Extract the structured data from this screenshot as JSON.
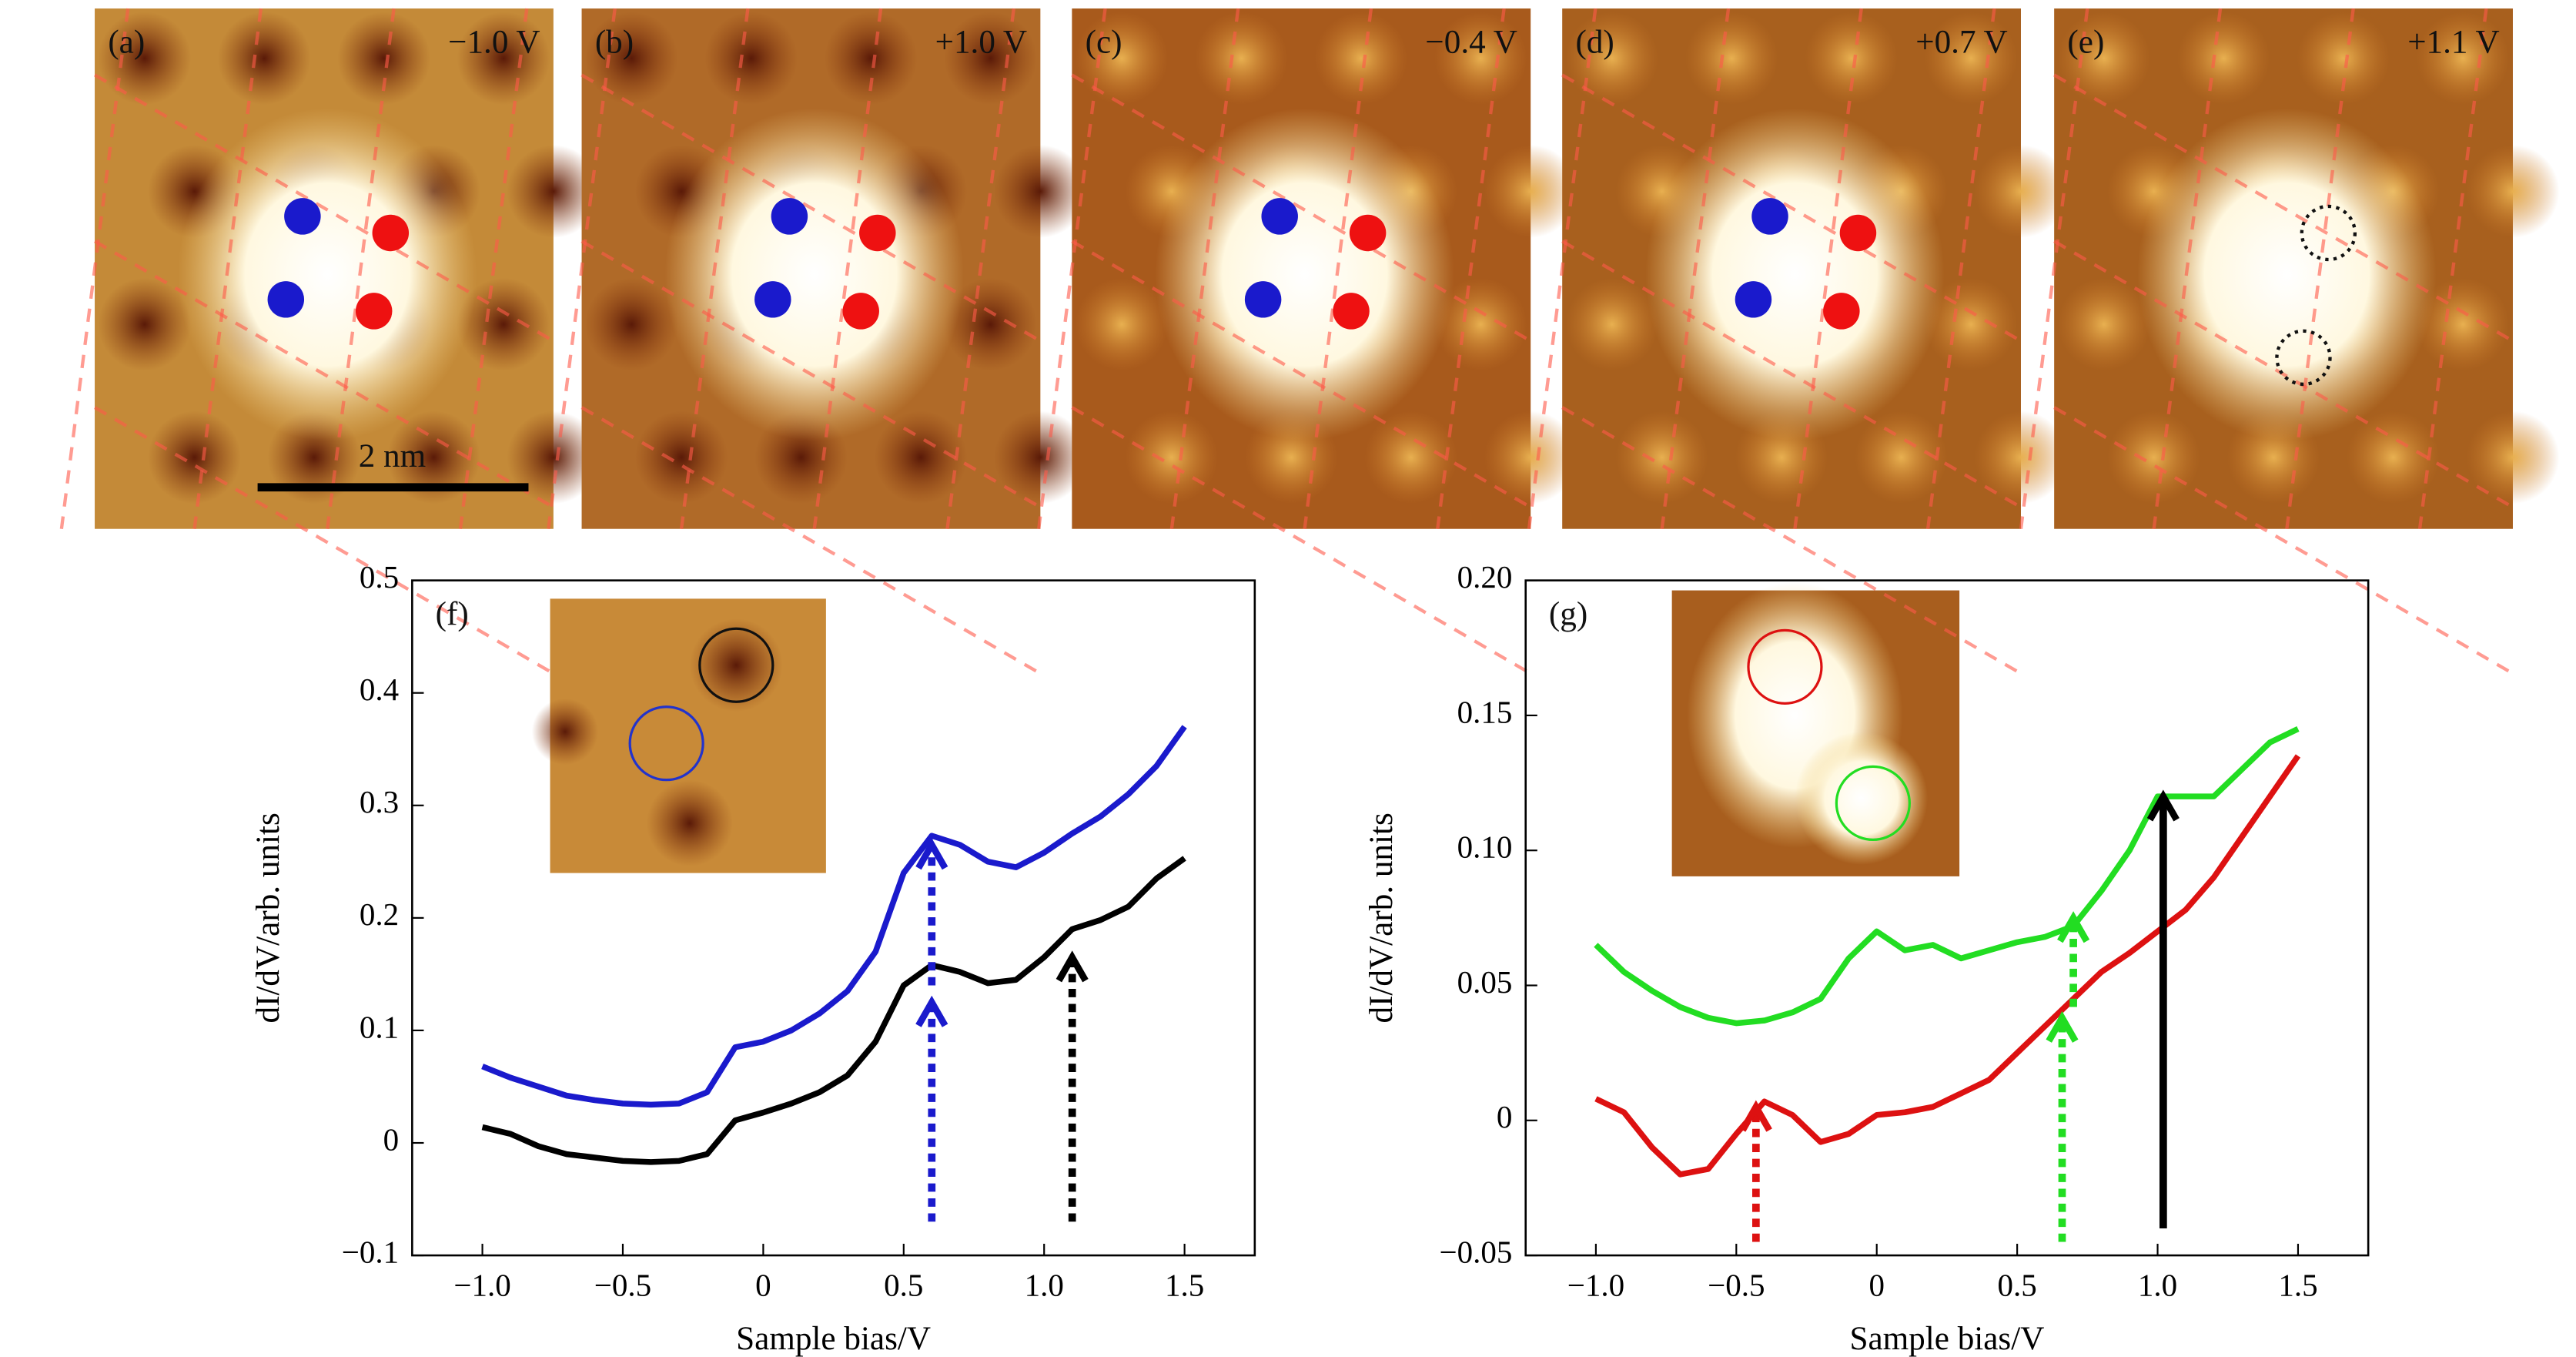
{
  "panels": [
    {
      "label": "(a)",
      "bias": "−1.0 V"
    },
    {
      "label": "(b)",
      "bias": "+1.0 V"
    },
    {
      "label": "(c)",
      "bias": "−0.4 V"
    },
    {
      "label": "(d)",
      "bias": "+0.7 V"
    },
    {
      "label": "(e)",
      "bias": "+1.1 V"
    }
  ],
  "scale_bar": "2 nm",
  "chart_data": [
    {
      "type": "line",
      "panel_label": "(f)",
      "xlabel": "Sample bias/V",
      "ylabel": "dI/dV/arb. units",
      "x": [
        -1.0,
        -0.9,
        -0.8,
        -0.7,
        -0.6,
        -0.5,
        -0.4,
        -0.3,
        -0.2,
        -0.1,
        0,
        0.1,
        0.2,
        0.3,
        0.4,
        0.5,
        0.6,
        0.7,
        0.8,
        0.9,
        1.0,
        1.1,
        1.2,
        1.3,
        1.4,
        1.5
      ],
      "series": [
        {
          "color": "#1a1acc",
          "values": [
            0.068,
            0.058,
            0.05,
            0.042,
            0.038,
            0.035,
            0.034,
            0.035,
            0.045,
            0.085,
            0.09,
            0.1,
            0.115,
            0.135,
            0.17,
            0.24,
            0.273,
            0.265,
            0.25,
            0.245,
            0.258,
            0.275,
            0.29,
            0.31,
            0.335,
            0.37
          ]
        },
        {
          "color": "#000000",
          "values": [
            0.014,
            0.008,
            -0.003,
            -0.01,
            -0.013,
            -0.016,
            -0.017,
            -0.016,
            -0.01,
            0.02,
            0.027,
            0.035,
            0.045,
            0.06,
            0.09,
            0.14,
            0.158,
            0.152,
            0.142,
            0.145,
            0.165,
            0.19,
            0.198,
            0.21,
            0.235,
            0.253
          ]
        }
      ],
      "xlim": [
        -1.25,
        1.75
      ],
      "ylim": [
        -0.1,
        0.5
      ],
      "xticks": [
        {
          "value": -1,
          "label": "−1.0"
        },
        {
          "value": -0.5,
          "label": "−0.5"
        },
        0,
        0.5,
        {
          "value": 1,
          "label": "1.0"
        },
        1.5
      ],
      "yticks": [
        {
          "value": -0.1,
          "label": "−0.1"
        },
        0,
        0.1,
        0.2,
        0.3,
        0.4,
        0.5
      ],
      "arrows": [
        {
          "x": 0.6,
          "from": -0.07,
          "to": 0.125,
          "color": "#1a1acc",
          "dashed": true
        },
        {
          "x": 0.6,
          "from": 0.14,
          "to": 0.265,
          "color": "#1a1acc",
          "dashed": true
        },
        {
          "x": 1.1,
          "from": -0.07,
          "to": 0.165,
          "color": "#000000",
          "dashed": true
        }
      ]
    },
    {
      "type": "line",
      "panel_label": "(g)",
      "xlabel": "Sample bias/V",
      "ylabel": "dI/dV/arb. units",
      "x": [
        -1.0,
        -0.9,
        -0.8,
        -0.7,
        -0.6,
        -0.5,
        -0.4,
        -0.3,
        -0.2,
        -0.1,
        0,
        0.1,
        0.2,
        0.3,
        0.4,
        0.5,
        0.6,
        0.7,
        0.8,
        0.9,
        1.0,
        1.1,
        1.2,
        1.3,
        1.4,
        1.5
      ],
      "series": [
        {
          "color": "#22dd22",
          "values": [
            0.065,
            0.055,
            0.048,
            0.042,
            0.038,
            0.036,
            0.037,
            0.04,
            0.045,
            0.06,
            0.07,
            0.063,
            0.065,
            0.06,
            0.063,
            0.066,
            0.068,
            0.072,
            0.085,
            0.1,
            0.12,
            0.12,
            0.12,
            0.13,
            0.14,
            0.145
          ]
        },
        {
          "color": "#dd1111",
          "values": [
            0.008,
            0.003,
            -0.01,
            -0.02,
            -0.018,
            -0.005,
            0.007,
            0.002,
            -0.008,
            -0.005,
            0.002,
            0.003,
            0.005,
            0.01,
            0.015,
            0.025,
            0.035,
            0.045,
            0.055,
            0.062,
            0.07,
            0.078,
            0.09,
            0.105,
            0.12,
            0.135
          ]
        }
      ],
      "xlim": [
        -1.25,
        1.75
      ],
      "ylim": [
        -0.05,
        0.2
      ],
      "xticks": [
        {
          "value": -1,
          "label": "−1.0"
        },
        {
          "value": -0.5,
          "label": "−0.5"
        },
        0,
        0.5,
        {
          "value": 1,
          "label": "1.0"
        },
        1.5
      ],
      "yticks": [
        {
          "value": -0.05,
          "label": "−0.05"
        },
        0,
        0.05,
        {
          "value": 0.1,
          "label": "0.10"
        },
        0.15,
        {
          "value": 0.2,
          "label": "0.20"
        }
      ],
      "arrows": [
        {
          "x": -0.43,
          "from": -0.045,
          "to": 0.005,
          "color": "#dd1111",
          "dashed": true
        },
        {
          "x": 0.66,
          "from": -0.045,
          "to": 0.038,
          "color": "#22dd22",
          "dashed": true
        },
        {
          "x": 0.7,
          "from": 0.042,
          "to": 0.075,
          "color": "#22dd22",
          "dashed": true
        },
        {
          "x": 1.02,
          "from": -0.04,
          "to": 0.12,
          "color": "#000000",
          "dashed": false
        }
      ]
    }
  ]
}
